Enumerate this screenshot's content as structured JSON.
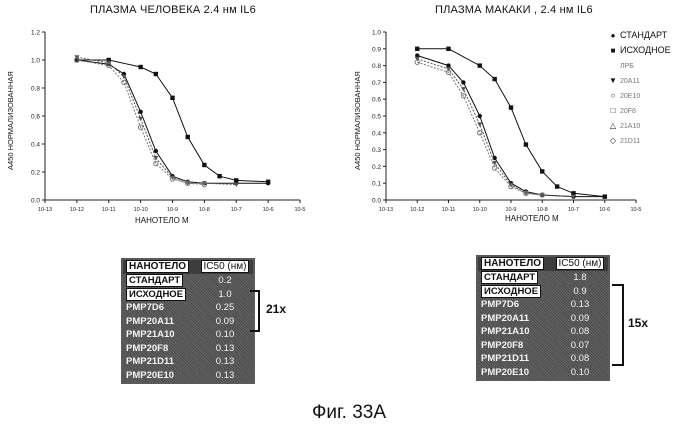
{
  "chart_data": [
    {
      "type": "line",
      "title": "ПЛАЗМА ЧЕЛОВЕКА 2.4 нм  IL6",
      "xlabel": "НАНОТЕЛО М",
      "ylabel": "А450 НОРМАЛИЗОВАННАЯ",
      "xscale": "log",
      "xlim": [
        1e-13,
        1e-05
      ],
      "ylim": [
        0.0,
        1.2
      ],
      "yticks": [
        "0.0",
        "0.2",
        "0.4",
        "0.6",
        "0.8",
        "1.0",
        "1.2"
      ],
      "xticks": [
        "10-13",
        "10-12",
        "10-11",
        "10-10",
        "10-9",
        "10-8",
        "10-7",
        "10-6",
        "10-5"
      ],
      "series": [
        {
          "name": "СТАНДАРТ",
          "color": "#111111",
          "marker": "circle",
          "x": [
            1e-12,
            1e-11,
            3e-11,
            1e-10,
            3e-10,
            1e-09,
            3e-09,
            1e-08,
            1e-07,
            1e-06
          ],
          "y": [
            1.0,
            0.97,
            0.9,
            0.63,
            0.35,
            0.17,
            0.13,
            0.12,
            0.12,
            0.12
          ]
        },
        {
          "name": "ИСХОДНОЕ",
          "color": "#111111",
          "marker": "square",
          "x": [
            1e-12,
            1e-11,
            1e-10,
            3e-10,
            1e-09,
            3e-09,
            1e-08,
            3e-08,
            1e-07,
            1e-06
          ],
          "y": [
            1.0,
            1.0,
            0.95,
            0.9,
            0.73,
            0.45,
            0.25,
            0.17,
            0.14,
            0.13
          ]
        },
        {
          "name": "PMP7D6",
          "color": "#555555",
          "marker": "triangle-down",
          "x": [
            1e-12,
            1e-11,
            3e-11,
            1e-10,
            3e-10,
            1e-09,
            3e-09,
            1e-08,
            1e-07
          ],
          "y": [
            1.02,
            0.98,
            0.88,
            0.58,
            0.3,
            0.16,
            0.12,
            0.12,
            0.11
          ]
        },
        {
          "name": "PMP20A11",
          "color": "#777777",
          "marker": "circle-open",
          "x": [
            1e-12,
            1e-11,
            3e-11,
            1e-10,
            3e-10,
            1e-09,
            3e-09,
            1e-08
          ],
          "y": [
            1.0,
            0.96,
            0.84,
            0.52,
            0.26,
            0.15,
            0.12,
            0.11
          ]
        }
      ]
    },
    {
      "type": "line",
      "title": "ПЛАЗМА МАКАКИ , 2.4 нм  IL6",
      "xlabel": "НАНОТЕЛО М",
      "ylabel": "А450 НОРМАЛИЗОВАННАЯ",
      "xscale": "log",
      "xlim": [
        1e-13,
        1e-05
      ],
      "ylim": [
        0.0,
        1.0
      ],
      "yticks": [
        "0.0",
        "0.1",
        "0.2",
        "0.3",
        "0.4",
        "0.5",
        "0.6",
        "0.7",
        "0.8",
        "0.9",
        "1.0"
      ],
      "xticks": [
        "10-13",
        "10-12",
        "10-11",
        "10-10",
        "10-9",
        "10-8",
        "10-7",
        "10-6",
        "10-5"
      ],
      "series": [
        {
          "name": "СТАНДАРТ",
          "color": "#111111",
          "marker": "circle",
          "x": [
            1e-12,
            1e-11,
            3e-11,
            1e-10,
            3e-10,
            1e-09,
            3e-09,
            1e-08,
            1e-07,
            1e-06
          ],
          "y": [
            0.86,
            0.8,
            0.7,
            0.5,
            0.25,
            0.1,
            0.05,
            0.03,
            0.02,
            0.02
          ]
        },
        {
          "name": "ИСХОДНОЕ",
          "color": "#111111",
          "marker": "square",
          "x": [
            1e-12,
            1e-11,
            1e-10,
            3e-10,
            1e-09,
            3e-09,
            1e-08,
            3e-08,
            1e-07,
            1e-06
          ],
          "y": [
            0.9,
            0.9,
            0.8,
            0.72,
            0.55,
            0.33,
            0.17,
            0.08,
            0.04,
            0.02
          ]
        },
        {
          "name": "PMP7D6",
          "color": "#555555",
          "marker": "triangle-down",
          "x": [
            1e-12,
            1e-11,
            3e-11,
            1e-10,
            3e-10,
            1e-09,
            3e-09,
            1e-08,
            1e-07
          ],
          "y": [
            0.84,
            0.78,
            0.66,
            0.45,
            0.22,
            0.09,
            0.04,
            0.03,
            0.02
          ]
        },
        {
          "name": "PMP20A11",
          "color": "#777777",
          "marker": "circle-open",
          "x": [
            1e-12,
            1e-11,
            3e-11,
            1e-10,
            3e-10,
            1e-09,
            3e-09,
            1e-08
          ],
          "y": [
            0.82,
            0.76,
            0.62,
            0.4,
            0.19,
            0.08,
            0.04,
            0.03
          ]
        }
      ]
    }
  ],
  "legend": {
    "items": [
      {
        "symbol": "●",
        "label": "СТАНДАРТ",
        "faint": false
      },
      {
        "symbol": "■",
        "label": "ИСХОДНОЕ",
        "faint": false
      },
      {
        "symbol": "",
        "label": "ЛРБ",
        "faint": true
      },
      {
        "symbol": "▼",
        "label": "20А11",
        "faint": true
      },
      {
        "symbol": "○",
        "label": "20Е10",
        "faint": true
      },
      {
        "symbol": "□",
        "label": "20F8",
        "faint": true
      },
      {
        "symbol": "△",
        "label": "21А10",
        "faint": true
      },
      {
        "symbol": "◇",
        "label": "21D11",
        "faint": true
      }
    ]
  },
  "tables": [
    {
      "header": [
        "НАНОТЕЛО",
        "IC50 (нм)"
      ],
      "rows": [
        {
          "name": "СТАНДАРТ",
          "value": "0.2",
          "boxed": true
        },
        {
          "name": "ИСХОДНОЕ",
          "value": "1.0",
          "boxed": true
        },
        {
          "name": "PMP7D6",
          "value": "0.25",
          "boxed": false
        },
        {
          "name": "PMP20A11",
          "value": "0.09",
          "boxed": false
        },
        {
          "name": "PMP21A10",
          "value": "0.10",
          "boxed": false
        },
        {
          "name": "PMP20F8",
          "value": "0.13",
          "boxed": false
        },
        {
          "name": "PMP21D11",
          "value": "0.13",
          "boxed": false
        },
        {
          "name": "PMP20E10",
          "value": "0.13",
          "boxed": false
        }
      ],
      "ratio": "21x"
    },
    {
      "header": [
        "НАНОТЕЛО",
        "IC50 (нм)"
      ],
      "rows": [
        {
          "name": "СТАНДАРТ",
          "value": "1.8",
          "boxed": true
        },
        {
          "name": "ИСХОДНОЕ",
          "value": "0.9",
          "boxed": true
        },
        {
          "name": "PMP7D6",
          "value": "0.13",
          "boxed": false
        },
        {
          "name": "PMP20A11",
          "value": "0.09",
          "boxed": false
        },
        {
          "name": "PMP21A10",
          "value": "0.08",
          "boxed": false
        },
        {
          "name": "PMP20F8",
          "value": "0.07",
          "boxed": false
        },
        {
          "name": "PMP21D11",
          "value": "0.08",
          "boxed": false
        },
        {
          "name": "PMP20E10",
          "value": "0.10",
          "boxed": false
        }
      ],
      "ratio": "15x"
    }
  ],
  "caption": "Фиг. 33А"
}
